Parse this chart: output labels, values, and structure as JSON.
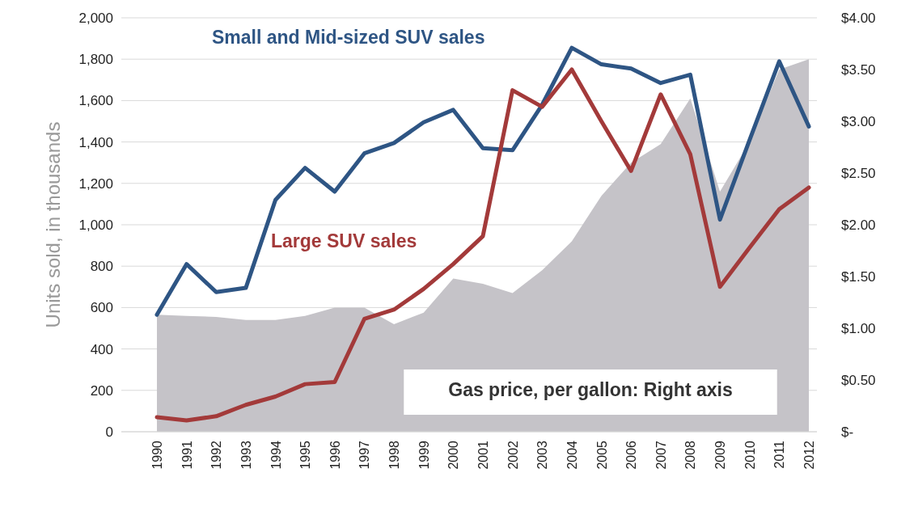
{
  "chart_data": {
    "type": "line",
    "ylabel": "Units sold, in thousands",
    "categories": [
      "1990",
      "1991",
      "1992",
      "1993",
      "1994",
      "1995",
      "1996",
      "1997",
      "1998",
      "1999",
      "2000",
      "2001",
      "2002",
      "2003",
      "2004",
      "2005",
      "2006",
      "2007",
      "2008",
      "2009",
      "2010",
      "2011",
      "2012"
    ],
    "series": [
      {
        "name": "Gas price, per gallon: Right axis",
        "type": "area",
        "axis": "y2",
        "color": "#c5c3c8",
        "values": [
          1.13,
          1.12,
          1.11,
          1.08,
          1.08,
          1.12,
          1.2,
          1.2,
          1.04,
          1.15,
          1.48,
          1.43,
          1.34,
          1.56,
          1.84,
          2.28,
          2.6,
          2.78,
          3.22,
          2.32,
          2.8,
          3.5,
          3.6
        ]
      },
      {
        "name": "Small and Mid-sized SUV sales",
        "color": "#2e5584",
        "values": [
          565,
          810,
          675,
          695,
          1120,
          1275,
          1160,
          1345,
          1395,
          1495,
          1555,
          1370,
          1360,
          1580,
          1855,
          1775,
          1755,
          1685,
          1725,
          1025,
          1410,
          1790,
          1475
        ]
      },
      {
        "name": "Large SUV sales",
        "color": "#a33a3a",
        "values": [
          70,
          55,
          75,
          130,
          170,
          230,
          240,
          545,
          590,
          690,
          810,
          945,
          1650,
          1570,
          1750,
          1500,
          1260,
          1630,
          1340,
          700,
          890,
          1075,
          1180
        ]
      }
    ],
    "ylim": [
      0,
      2000
    ],
    "yticks": [
      0,
      200,
      400,
      600,
      800,
      {
        "value": 1000,
        "label": "1,000"
      },
      {
        "value": 1200,
        "label": "1,200"
      },
      {
        "value": 1400,
        "label": "1,400"
      },
      {
        "value": 1600,
        "label": "1,600"
      },
      {
        "value": 1800,
        "label": "1,800"
      },
      {
        "value": 2000,
        "label": "2,000"
      }
    ],
    "y2lim": [
      0,
      4
    ],
    "y2ticks": [
      {
        "value": 0,
        "label": "$-"
      },
      {
        "value": 0.5,
        "label": "$0.50"
      },
      {
        "value": 1,
        "label": "$1.00"
      },
      {
        "value": 1.5,
        "label": "$1.50"
      },
      {
        "value": 2,
        "label": "$2.00"
      },
      {
        "value": 2.5,
        "label": "$2.50"
      },
      {
        "value": 3,
        "label": "$3.00"
      },
      {
        "value": 3.5,
        "label": "$3.50"
      },
      {
        "value": 4,
        "label": "$4.00"
      }
    ],
    "grid": "y",
    "legend": false,
    "line_style": "solid",
    "marker": "none"
  }
}
